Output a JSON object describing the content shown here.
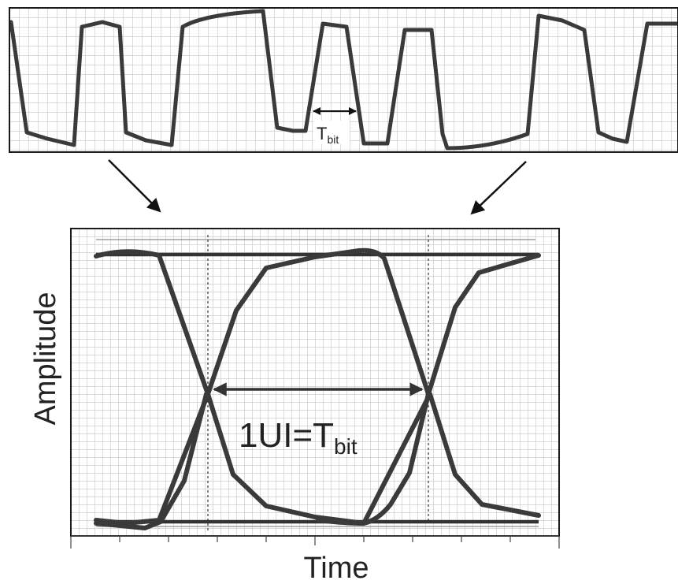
{
  "colors": {
    "background": "#ffffff",
    "grid": "#bfbfbf",
    "trace": "#3a3a3a",
    "frame": "#1a1a1a",
    "annotation": "#111111"
  },
  "top_panel": {
    "annotation": {
      "main": "T",
      "sub": "bit"
    }
  },
  "eye_panel": {
    "y_axis_label": "Amplitude",
    "x_axis_label": "Time",
    "ui_label": {
      "prefix": "1UI=T",
      "sub": "bit"
    }
  }
}
